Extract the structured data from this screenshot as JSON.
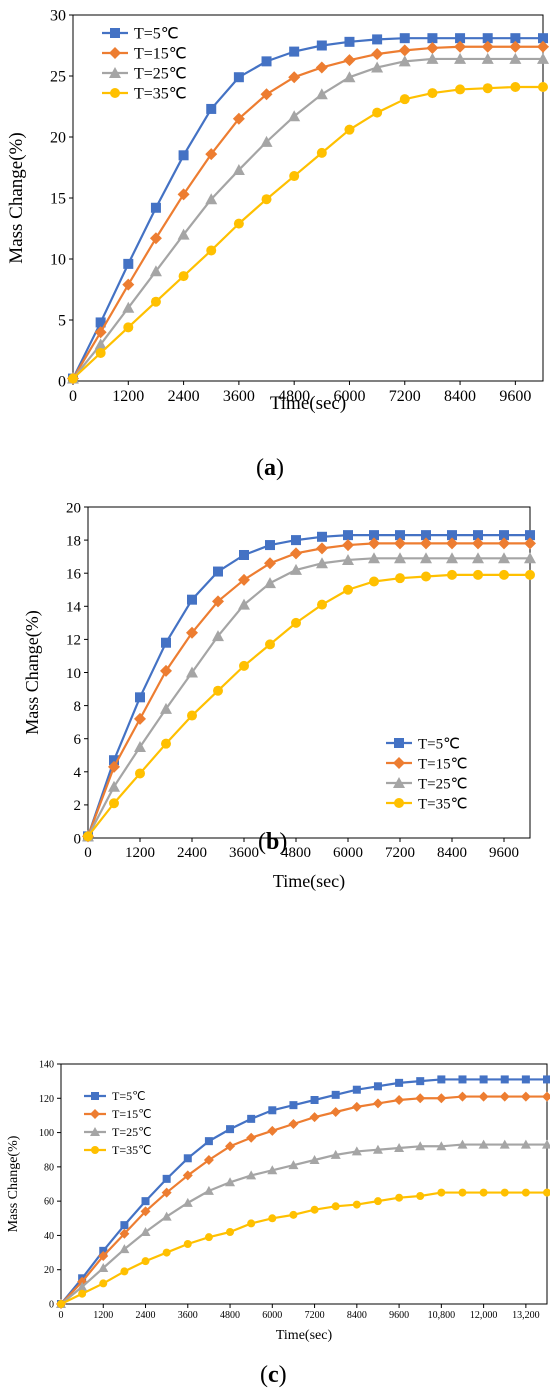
{
  "series_colors": [
    "#4472C4",
    "#ED7D31",
    "#A5A5A5",
    "#FFC000"
  ],
  "series_markers": [
    "square",
    "diamond",
    "triangle",
    "circle"
  ],
  "captions": {
    "a_open": "(",
    "a_letter": "a",
    "a_close": ")",
    "b_open": "(",
    "b_letter": "b",
    "b_close": ")",
    "c_open": "(",
    "c_letter": "c",
    "c_close": ")"
  },
  "chart_data": [
    {
      "type": "line",
      "xlabel": "Time(sec)",
      "ylabel": "Mass Change(%)",
      "xlim": [
        0,
        10200
      ],
      "ylim": [
        0,
        30
      ],
      "x_ticks": [
        0,
        1200,
        2400,
        3600,
        4800,
        6000,
        7200,
        8400,
        9600
      ],
      "x_tick_labels": [
        "0",
        "1200",
        "2400",
        "3600",
        "4800",
        "6000",
        "7200",
        "8400",
        "9600"
      ],
      "y_ticks": [
        0,
        5,
        10,
        15,
        20,
        25,
        30
      ],
      "y_tick_labels": [
        "0",
        "5",
        "10",
        "15",
        "20",
        "25",
        "30"
      ],
      "legend_position": "top-left",
      "grid": false,
      "x": [
        0,
        600,
        1200,
        1800,
        2400,
        3000,
        3600,
        4200,
        4800,
        5400,
        6000,
        6600,
        7200,
        7800,
        8400,
        9000,
        9600,
        10200
      ],
      "series": [
        {
          "name": "T=5℃",
          "values": [
            0.2,
            4.8,
            9.6,
            14.2,
            18.5,
            22.3,
            24.9,
            26.2,
            27.0,
            27.5,
            27.8,
            28.0,
            28.1,
            28.1,
            28.1,
            28.1,
            28.1,
            28.1
          ]
        },
        {
          "name": "T=15℃",
          "values": [
            0.2,
            4.0,
            7.9,
            11.7,
            15.3,
            18.6,
            21.5,
            23.5,
            24.9,
            25.7,
            26.3,
            26.8,
            27.1,
            27.3,
            27.4,
            27.4,
            27.4,
            27.4
          ]
        },
        {
          "name": "T=25℃",
          "values": [
            0.2,
            3.0,
            6.0,
            9.0,
            12.0,
            14.9,
            17.3,
            19.6,
            21.7,
            23.5,
            24.9,
            25.7,
            26.2,
            26.4,
            26.4,
            26.4,
            26.4,
            26.4
          ]
        },
        {
          "name": "T=35℃",
          "values": [
            0.2,
            2.3,
            4.4,
            6.5,
            8.6,
            10.7,
            12.9,
            14.9,
            16.8,
            18.7,
            20.6,
            22.0,
            23.1,
            23.6,
            23.9,
            24.0,
            24.1,
            24.1
          ]
        }
      ]
    },
    {
      "type": "line",
      "xlabel": "Time(sec)",
      "ylabel": "Mass Change(%)",
      "xlim": [
        0,
        10200
      ],
      "ylim": [
        0,
        20
      ],
      "x_ticks": [
        0,
        1200,
        2400,
        3600,
        4800,
        6000,
        7200,
        8400,
        9600
      ],
      "x_tick_labels": [
        "0",
        "1200",
        "2400",
        "3600",
        "4800",
        "6000",
        "7200",
        "8400",
        "9600"
      ],
      "y_ticks": [
        0,
        2,
        4,
        6,
        8,
        10,
        12,
        14,
        16,
        18,
        20
      ],
      "y_tick_labels": [
        "0",
        "2",
        "4",
        "6",
        "8",
        "10",
        "12",
        "14",
        "16",
        "18",
        "20"
      ],
      "legend_position": "bottom-right",
      "grid": false,
      "x": [
        0,
        600,
        1200,
        1800,
        2400,
        3000,
        3600,
        4200,
        4800,
        5400,
        6000,
        6600,
        7200,
        7800,
        8400,
        9000,
        9600,
        10200
      ],
      "series": [
        {
          "name": "T=5℃",
          "values": [
            0.1,
            4.7,
            8.5,
            11.8,
            14.4,
            16.1,
            17.1,
            17.7,
            18.0,
            18.2,
            18.3,
            18.3,
            18.3,
            18.3,
            18.3,
            18.3,
            18.3,
            18.3
          ]
        },
        {
          "name": "T=15℃",
          "values": [
            0.1,
            4.3,
            7.2,
            10.1,
            12.4,
            14.3,
            15.6,
            16.6,
            17.2,
            17.5,
            17.7,
            17.8,
            17.8,
            17.8,
            17.8,
            17.8,
            17.8,
            17.8
          ]
        },
        {
          "name": "T=25℃",
          "values": [
            0.1,
            3.1,
            5.5,
            7.8,
            10.0,
            12.2,
            14.1,
            15.4,
            16.2,
            16.6,
            16.8,
            16.9,
            16.9,
            16.9,
            16.9,
            16.9,
            16.9,
            16.9
          ]
        },
        {
          "name": "T=35℃",
          "values": [
            0.1,
            2.1,
            3.9,
            5.7,
            7.4,
            8.9,
            10.4,
            11.7,
            13.0,
            14.1,
            15.0,
            15.5,
            15.7,
            15.8,
            15.9,
            15.9,
            15.9,
            15.9
          ]
        }
      ]
    },
    {
      "type": "line",
      "xlabel": "Time(sec)",
      "ylabel": "Mass Change(%)",
      "xlim": [
        0,
        13800
      ],
      "ylim": [
        0,
        140
      ],
      "x_ticks": [
        0,
        1200,
        2400,
        3600,
        4800,
        6000,
        7200,
        8400,
        9600,
        10800,
        12000,
        13200
      ],
      "x_tick_labels": [
        "0",
        "1200",
        "2400",
        "3600",
        "4800",
        "6000",
        "7200",
        "8400",
        "9600",
        "10,800",
        "12,000",
        "13,200"
      ],
      "y_ticks": [
        0,
        20,
        40,
        60,
        80,
        100,
        120,
        140
      ],
      "y_tick_labels": [
        "0",
        "20",
        "40",
        "60",
        "80",
        "100",
        "120",
        "140"
      ],
      "legend_position": "top-left",
      "grid": false,
      "x": [
        0,
        600,
        1200,
        1800,
        2400,
        3000,
        3600,
        4200,
        4800,
        5400,
        6000,
        6600,
        7200,
        7800,
        8400,
        9000,
        9600,
        10200,
        10800,
        11400,
        12000,
        12600,
        13200,
        13800
      ],
      "series": [
        {
          "name": "T=5℃",
          "values": [
            0,
            15,
            31,
            46,
            60,
            73,
            85,
            95,
            102,
            108,
            113,
            116,
            119,
            122,
            125,
            127,
            129,
            130,
            131,
            131,
            131,
            131,
            131,
            131
          ]
        },
        {
          "name": "T=15℃",
          "values": [
            0,
            13,
            28,
            41,
            54,
            65,
            75,
            84,
            92,
            97,
            101,
            105,
            109,
            112,
            115,
            117,
            119,
            120,
            120,
            121,
            121,
            121,
            121,
            121
          ]
        },
        {
          "name": "T=25℃",
          "values": [
            0,
            10,
            21,
            32,
            42,
            51,
            59,
            66,
            71,
            75,
            78,
            81,
            84,
            87,
            89,
            90,
            91,
            92,
            92,
            93,
            93,
            93,
            93,
            93
          ]
        },
        {
          "name": "T=35℃",
          "values": [
            0,
            6,
            12,
            19,
            25,
            30,
            35,
            39,
            42,
            47,
            50,
            52,
            55,
            57,
            58,
            60,
            62,
            63,
            65,
            65,
            65,
            65,
            65,
            65
          ]
        }
      ]
    }
  ]
}
